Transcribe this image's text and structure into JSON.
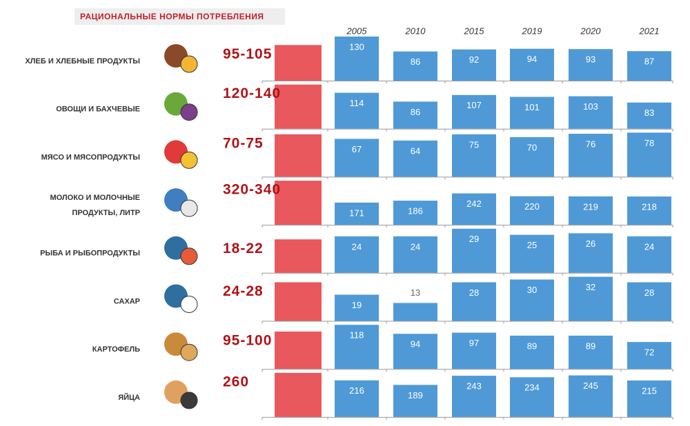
{
  "chart_data": {
    "type": "bar",
    "title": "Рациональные нормы потребления",
    "categories": [
      "2005",
      "2010",
      "2015",
      "2019",
      "2020",
      "2021"
    ],
    "norm_color": "#e8585c",
    "color": "#4f9ad6",
    "rows": [
      {
        "label": [
          "ХЛЕБ И ХЛЕБНЫЕ ПРОДУКТЫ"
        ],
        "norm": [
          95,
          105
        ],
        "norm_label": "95-105",
        "values": [
          130,
          86,
          92,
          94,
          93,
          87
        ]
      },
      {
        "label": [
          "ОВОЩИ И БАХЧЕВЫЕ"
        ],
        "norm": [
          120,
          140
        ],
        "norm_label": "120-140",
        "values": [
          114,
          86,
          107,
          101,
          103,
          83
        ]
      },
      {
        "label": [
          "МЯСО И МЯСОПРОДУКТЫ"
        ],
        "norm": [
          70,
          75
        ],
        "norm_label": "70-75",
        "values": [
          67,
          64,
          75,
          70,
          76,
          78
        ]
      },
      {
        "label": [
          "МОЛОКО И МОЛОЧНЫЕ",
          "ПРОДУКТЫ, ЛИТР"
        ],
        "norm": [
          320,
          340
        ],
        "norm_label": "320-340",
        "values": [
          171,
          186,
          242,
          220,
          219,
          218
        ]
      },
      {
        "label": [
          "РЫБА И РЫБОПРОДУКТЫ"
        ],
        "norm": [
          18,
          22
        ],
        "norm_label": "18-22",
        "values": [
          24,
          24,
          29,
          25,
          26,
          24
        ]
      },
      {
        "label": [
          "САХАР"
        ],
        "norm": [
          24,
          28
        ],
        "norm_label": "24-28",
        "values": [
          19,
          13,
          28,
          30,
          32,
          28
        ]
      },
      {
        "label": [
          "КАРТОФЕЛЬ"
        ],
        "norm": [
          95,
          100
        ],
        "norm_label": "95-100",
        "values": [
          118,
          94,
          97,
          89,
          89,
          72
        ]
      },
      {
        "label": [
          "ЯЙЦА"
        ],
        "norm": [
          260
        ],
        "norm_label": "260",
        "values": [
          216,
          189,
          243,
          234,
          245,
          215
        ]
      }
    ]
  }
}
